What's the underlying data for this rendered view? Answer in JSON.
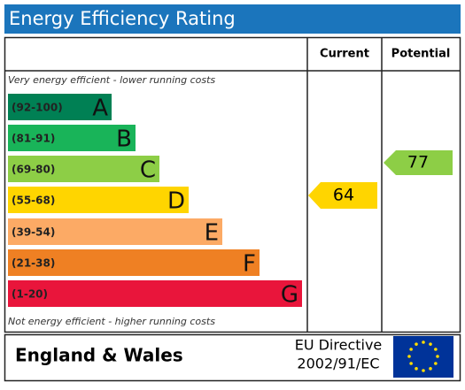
{
  "header": {
    "title": "Energy Efficiency Rating",
    "current": "Current",
    "potential": "Potential"
  },
  "top_note": "Very energy efficient - lower running costs",
  "bottom_note": "Not energy efficient - higher running costs",
  "bands": [
    {
      "range": "(92-100)",
      "letter": "A"
    },
    {
      "range": "(81-91)",
      "letter": "B"
    },
    {
      "range": "(69-80)",
      "letter": "C"
    },
    {
      "range": "(55-68)",
      "letter": "D"
    },
    {
      "range": "(39-54)",
      "letter": "E"
    },
    {
      "range": "(21-38)",
      "letter": "F"
    },
    {
      "range": "(1-20)",
      "letter": "G"
    }
  ],
  "current": {
    "value": "64"
  },
  "potential": {
    "value": "77"
  },
  "footer": {
    "region": "England & Wales",
    "directive": [
      "EU Directive",
      "2002/91/EC"
    ]
  }
}
